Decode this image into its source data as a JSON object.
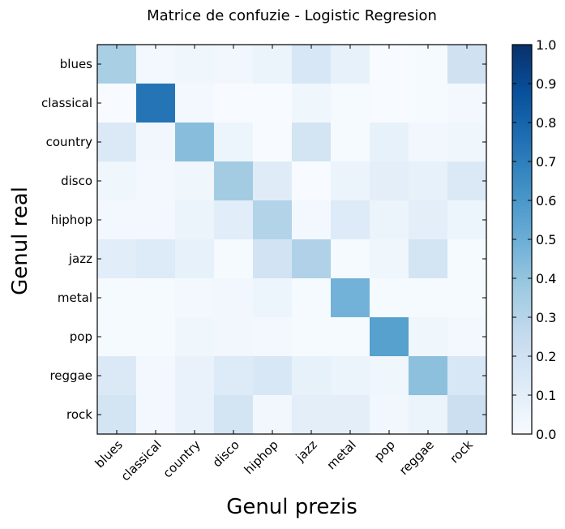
{
  "chart_data": {
    "type": "heatmap",
    "title": "Matrice de confuzie - Logistic Regresion",
    "xlabel": "Genul prezis",
    "ylabel": "Genul real",
    "x_categories": [
      "blues",
      "classical",
      "country",
      "disco",
      "hiphop",
      "jazz",
      "metal",
      "pop",
      "reggae",
      "rock"
    ],
    "y_categories": [
      "blues",
      "classical",
      "country",
      "disco",
      "hiphop",
      "jazz",
      "metal",
      "pop",
      "reggae",
      "rock"
    ],
    "values": [
      [
        0.34,
        0.02,
        0.04,
        0.03,
        0.06,
        0.16,
        0.08,
        0.0,
        0.01,
        0.2
      ],
      [
        0.0,
        0.74,
        0.02,
        0.0,
        0.0,
        0.04,
        0.01,
        0.0,
        0.01,
        0.02
      ],
      [
        0.14,
        0.03,
        0.43,
        0.05,
        0.0,
        0.18,
        0.01,
        0.08,
        0.03,
        0.04
      ],
      [
        0.04,
        0.02,
        0.04,
        0.36,
        0.12,
        0.0,
        0.06,
        0.1,
        0.08,
        0.14
      ],
      [
        0.02,
        0.02,
        0.06,
        0.11,
        0.31,
        0.02,
        0.13,
        0.06,
        0.1,
        0.05
      ],
      [
        0.11,
        0.13,
        0.08,
        0.01,
        0.19,
        0.32,
        0.01,
        0.04,
        0.18,
        0.01
      ],
      [
        0.01,
        0.01,
        0.02,
        0.03,
        0.05,
        0.01,
        0.48,
        0.01,
        0.01,
        0.01
      ],
      [
        0.01,
        0.01,
        0.04,
        0.03,
        0.02,
        0.01,
        0.01,
        0.56,
        0.04,
        0.02
      ],
      [
        0.14,
        0.02,
        0.07,
        0.13,
        0.16,
        0.08,
        0.06,
        0.04,
        0.42,
        0.16
      ],
      [
        0.18,
        0.02,
        0.07,
        0.18,
        0.03,
        0.1,
        0.1,
        0.03,
        0.06,
        0.22
      ]
    ],
    "colorbar": {
      "min": 0.0,
      "max": 1.0,
      "ticks": [
        "0.0",
        "0.1",
        "0.2",
        "0.3",
        "0.4",
        "0.5",
        "0.6",
        "0.7",
        "0.8",
        "0.9",
        "1.0"
      ],
      "colormap": "Blues"
    },
    "grid": false
  }
}
